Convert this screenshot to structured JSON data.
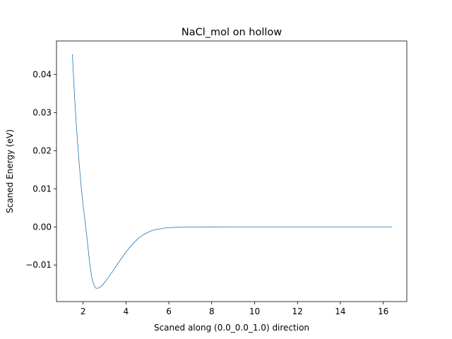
{
  "chart_data": {
    "type": "line",
    "title": "NaCl_mol on hollow",
    "xlabel": "Scaned along (0.0_0.0_1.0) direction",
    "ylabel": "Scaned Energy (eV)",
    "xlim": [
      0.76,
      17.1
    ],
    "ylim": [
      -0.0196,
      0.0488
    ],
    "xticks": [
      2,
      4,
      6,
      8,
      10,
      12,
      14,
      16
    ],
    "xtick_labels": [
      "2",
      "4",
      "6",
      "8",
      "10",
      "12",
      "14",
      "16"
    ],
    "yticks": [
      -0.01,
      0.0,
      0.01,
      0.02,
      0.03,
      0.04
    ],
    "ytick_labels": [
      "−0.01",
      "0.00",
      "0.01",
      "0.02",
      "0.03",
      "0.04"
    ],
    "grid": false,
    "legend": "none",
    "series": [
      {
        "color": "#1f77b4",
        "x": [
          1.5,
          1.6,
          1.7,
          1.8,
          1.9,
          2.0,
          2.1,
          2.2,
          2.3,
          2.4,
          2.5,
          2.6,
          2.7,
          2.8,
          2.9,
          3.0,
          3.2,
          3.4,
          3.6,
          3.8,
          4.0,
          4.2,
          4.4,
          4.6,
          4.8,
          5.0,
          5.2,
          5.4,
          5.6,
          5.8,
          6.0,
          6.3,
          6.6,
          7.0,
          7.5,
          8.0,
          9.0,
          10.0,
          11.0,
          12.0,
          13.0,
          14.0,
          15.0,
          16.0,
          16.4
        ],
        "y": [
          0.0453,
          0.0345,
          0.0255,
          0.0178,
          0.0112,
          0.0057,
          0.0011,
          -0.0038,
          -0.0092,
          -0.0132,
          -0.0152,
          -0.0161,
          -0.0161,
          -0.0158,
          -0.0153,
          -0.0146,
          -0.0131,
          -0.0115,
          -0.0098,
          -0.0082,
          -0.0066,
          -0.0052,
          -0.004,
          -0.0029,
          -0.0021,
          -0.0015,
          -0.001,
          -0.0007,
          -0.0005,
          -0.0003,
          -0.0002,
          -0.0001,
          -7e-05,
          -4e-05,
          -2e-05,
          -1e-05,
          0.0,
          0.0,
          0.0,
          0.0,
          0.0,
          0.0,
          0.0,
          0.0,
          0.0
        ]
      }
    ]
  }
}
